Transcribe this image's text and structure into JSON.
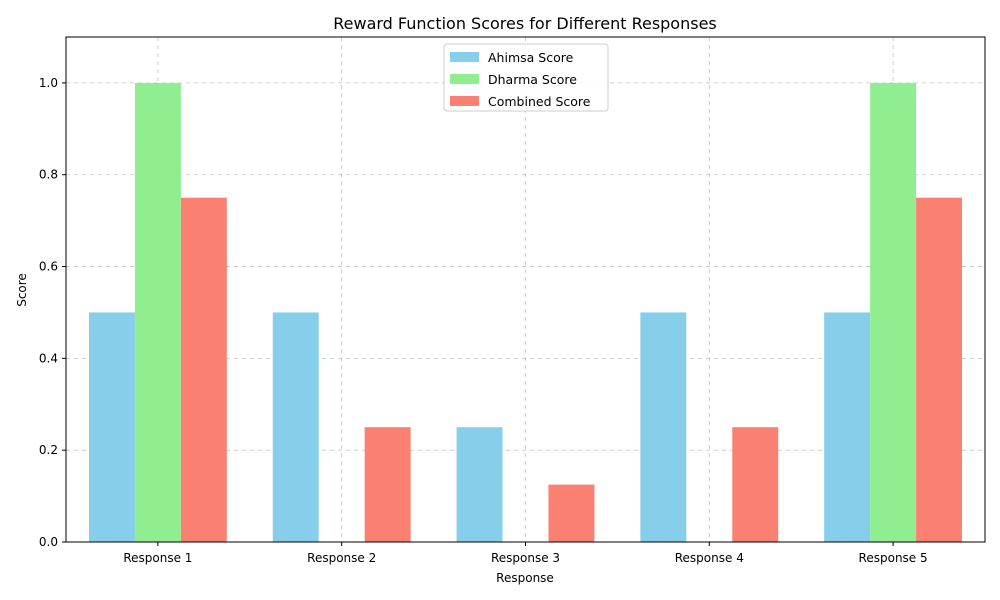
{
  "chart_data": {
    "type": "bar",
    "title": "Reward Function Scores for Different Responses",
    "xlabel": "Response",
    "ylabel": "Score",
    "categories": [
      "Response 1",
      "Response 2",
      "Response 3",
      "Response 4",
      "Response 5"
    ],
    "series": [
      {
        "name": "Ahimsa Score",
        "color": "#87ceeb",
        "values": [
          0.5,
          0.5,
          0.25,
          0.5,
          0.5
        ]
      },
      {
        "name": "Dharma Score",
        "color": "#90ee90",
        "values": [
          1.0,
          0.0,
          0.0,
          0.0,
          1.0
        ]
      },
      {
        "name": "Combined Score",
        "color": "#fa8072",
        "values": [
          0.75,
          0.25,
          0.125,
          0.25,
          0.75
        ]
      }
    ],
    "ylim": [
      0,
      1.1
    ],
    "yticks": [
      "0.0",
      "0.2",
      "0.4",
      "0.6",
      "0.8",
      "1.0"
    ],
    "grid": true,
    "legend_position": "top-center"
  }
}
